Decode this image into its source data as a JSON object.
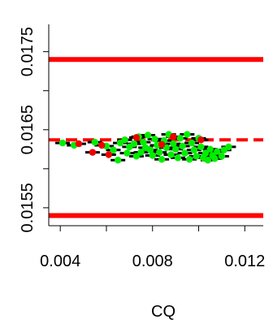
{
  "chart_data": {
    "type": "scatter",
    "title": "",
    "xlabel": "CQ",
    "ylabel": "",
    "xlim": [
      0.0035,
      0.0128
    ],
    "ylim": [
      0.01527,
      0.01785
    ],
    "x_ticks": [
      0.004,
      0.006,
      0.008,
      0.01,
      0.012
    ],
    "x_tick_labels": [
      "0.004",
      "",
      "0.008",
      "",
      "0.012"
    ],
    "y_ticks": [
      0.0155,
      0.016,
      0.0165,
      0.017,
      0.0175
    ],
    "y_tick_labels": [
      "0.0155",
      "",
      "0.0165",
      "",
      "0.0175"
    ],
    "grid": false,
    "legend": "none",
    "reference_lines": {
      "upper_limit": 0.0174,
      "lower_limit": 0.0154,
      "center": 0.01637,
      "color": "#ff0000"
    },
    "colors": {
      "in_control": "#00ee00",
      "flagged": "#ee0000",
      "error_bar": "#000000"
    },
    "series": [
      {
        "color": "#00ee00",
        "points": [
          {
            "x": 0.0041,
            "y": 0.01633
          },
          {
            "x": 0.0046,
            "y": 0.0163
          },
          {
            "x": 0.0055,
            "y": 0.01634
          },
          {
            "x": 0.006,
            "y": 0.01629
          },
          {
            "x": 0.0063,
            "y": 0.01624
          },
          {
            "x": 0.0065,
            "y": 0.01611
          },
          {
            "x": 0.0066,
            "y": 0.01633
          },
          {
            "x": 0.0068,
            "y": 0.01637
          },
          {
            "x": 0.0069,
            "y": 0.0162
          },
          {
            "x": 0.007,
            "y": 0.01628
          },
          {
            "x": 0.0072,
            "y": 0.01632
          },
          {
            "x": 0.0073,
            "y": 0.01616
          },
          {
            "x": 0.0074,
            "y": 0.01641
          },
          {
            "x": 0.0075,
            "y": 0.01621
          },
          {
            "x": 0.0076,
            "y": 0.01634
          },
          {
            "x": 0.0077,
            "y": 0.01627
          },
          {
            "x": 0.0078,
            "y": 0.01643
          },
          {
            "x": 0.0079,
            "y": 0.01624
          },
          {
            "x": 0.008,
            "y": 0.01617
          },
          {
            "x": 0.0081,
            "y": 0.01638
          },
          {
            "x": 0.0082,
            "y": 0.0163
          },
          {
            "x": 0.0083,
            "y": 0.01621
          },
          {
            "x": 0.0084,
            "y": 0.01612
          },
          {
            "x": 0.0085,
            "y": 0.01636
          },
          {
            "x": 0.0086,
            "y": 0.01627
          },
          {
            "x": 0.0087,
            "y": 0.01644
          },
          {
            "x": 0.0088,
            "y": 0.01618
          },
          {
            "x": 0.0089,
            "y": 0.01632
          },
          {
            "x": 0.009,
            "y": 0.01625
          },
          {
            "x": 0.0091,
            "y": 0.01614
          },
          {
            "x": 0.0092,
            "y": 0.01639
          },
          {
            "x": 0.0093,
            "y": 0.01629
          },
          {
            "x": 0.0094,
            "y": 0.0162
          },
          {
            "x": 0.0095,
            "y": 0.01644
          },
          {
            "x": 0.0096,
            "y": 0.01612
          },
          {
            "x": 0.0097,
            "y": 0.01633
          },
          {
            "x": 0.0098,
            "y": 0.01624
          },
          {
            "x": 0.0099,
            "y": 0.01616
          },
          {
            "x": 0.01,
            "y": 0.01639
          },
          {
            "x": 0.0101,
            "y": 0.01628
          },
          {
            "x": 0.0102,
            "y": 0.01614
          },
          {
            "x": 0.0103,
            "y": 0.0162
          },
          {
            "x": 0.0104,
            "y": 0.01611
          },
          {
            "x": 0.0105,
            "y": 0.01625
          },
          {
            "x": 0.0106,
            "y": 0.01617
          },
          {
            "x": 0.0107,
            "y": 0.01613
          },
          {
            "x": 0.0108,
            "y": 0.01622
          },
          {
            "x": 0.011,
            "y": 0.01616
          },
          {
            "x": 0.0111,
            "y": 0.01624
          },
          {
            "x": 0.0113,
            "y": 0.01628
          }
        ]
      },
      {
        "color": "#ee0000",
        "points": [
          {
            "x": 0.0048,
            "y": 0.01632
          },
          {
            "x": 0.0054,
            "y": 0.01621
          },
          {
            "x": 0.0058,
            "y": 0.0163
          },
          {
            "x": 0.0061,
            "y": 0.01618
          },
          {
            "x": 0.0073,
            "y": 0.0164
          },
          {
            "x": 0.0084,
            "y": 0.01631
          },
          {
            "x": 0.0089,
            "y": 0.01641
          },
          {
            "x": 0.0101,
            "y": 0.01637
          }
        ]
      }
    ]
  }
}
